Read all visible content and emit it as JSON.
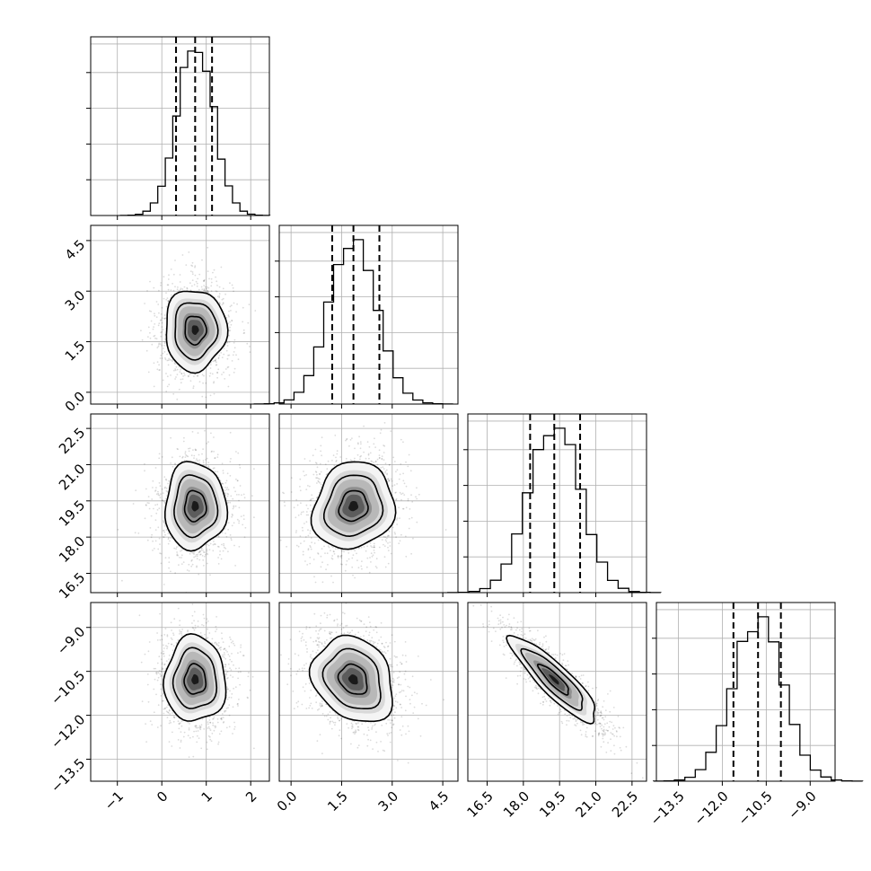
{
  "chart_data": {
    "type": "corner",
    "grid": true,
    "parameters": [
      {
        "median": 0.75,
        "q16": 0.32,
        "q84": 1.13,
        "sigma": 0.4,
        "range": [
          -1.6,
          2.42
        ],
        "ticks": [
          -1,
          0,
          1,
          2
        ],
        "tick_labels": [
          "−1",
          "0",
          "1",
          "2"
        ]
      },
      {
        "median": 1.85,
        "q16": 1.22,
        "q84": 2.62,
        "sigma": 0.7,
        "range": [
          -0.35,
          4.95
        ],
        "ticks": [
          0,
          1.5,
          3,
          4.5
        ],
        "tick_labels": [
          "0.0",
          "1.5",
          "3.0",
          "4.5"
        ]
      },
      {
        "median": 19.28,
        "q16": 18.28,
        "q84": 20.35,
        "sigma": 1.05,
        "range": [
          15.7,
          23.1
        ],
        "ticks": [
          16.5,
          18,
          19.5,
          21,
          22.5
        ],
        "tick_labels": [
          "16.5",
          "18.0",
          "19.5",
          "21.0",
          "22.5"
        ]
      },
      {
        "median": -10.78,
        "q16": -11.62,
        "q84": -10.0,
        "sigma": 0.85,
        "range": [
          -14.25,
          -8.15
        ],
        "ticks": [
          -13.5,
          -12,
          -10.5,
          -9
        ],
        "tick_labels": [
          "−13.5",
          "−12.0",
          "−10.5",
          "−9.0"
        ]
      }
    ],
    "correlations": {
      "1-0": 0.0,
      "2-0": 0.0,
      "2-1": 0.12,
      "3-0": 0.0,
      "3-1": -0.22,
      "3-2": -0.88
    }
  }
}
